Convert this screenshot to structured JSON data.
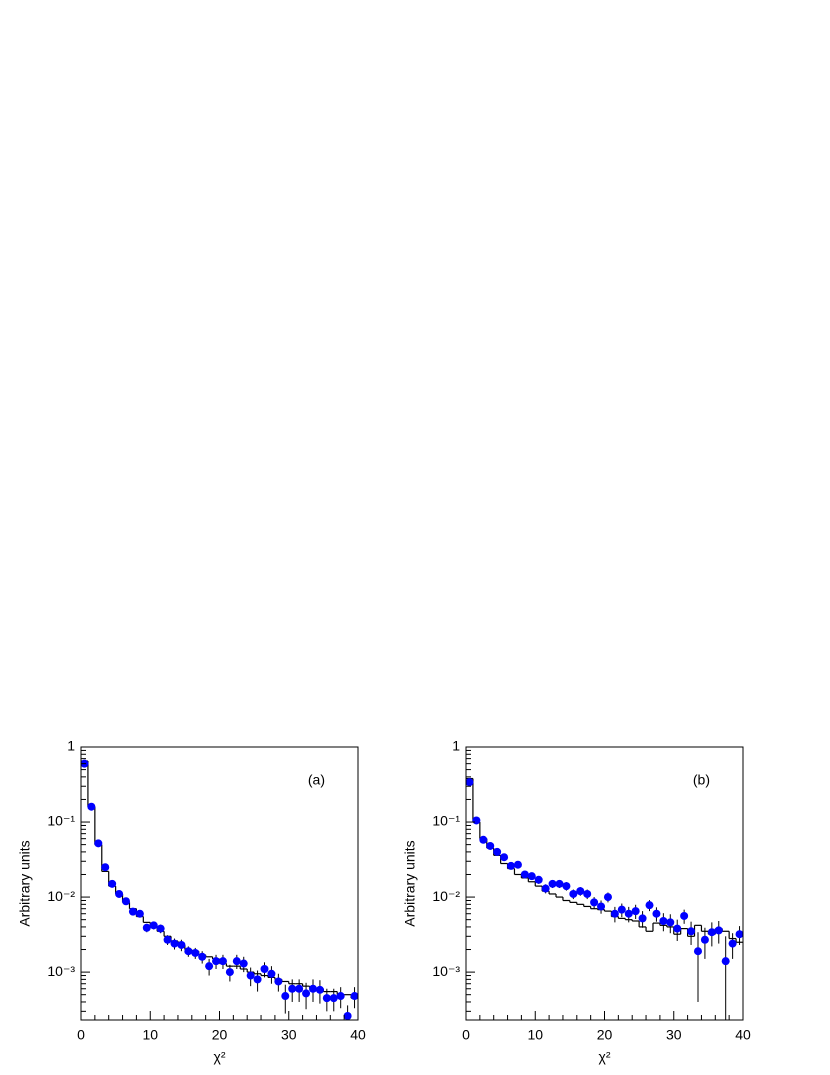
{
  "chart_data": [
    {
      "type": "histogram",
      "annotation": "(a)",
      "xlabel": "χ²",
      "ylabel": "Arbitrary units",
      "xlim": [
        0,
        40
      ],
      "xticks": [
        0,
        10,
        20,
        30,
        40
      ],
      "ylim": [
        0.00023,
        1
      ],
      "log_y": true,
      "yticks": [
        {
          "value": 0.001,
          "label": "10⁻³"
        },
        {
          "value": 0.01,
          "label": "10⁻²"
        },
        {
          "value": 0.1,
          "label": "10⁻¹"
        },
        1
      ],
      "bins": [
        0,
        1,
        2,
        3,
        4,
        5,
        6,
        7,
        8,
        9,
        10,
        11,
        12,
        13,
        14,
        15,
        16,
        17,
        18,
        19,
        20,
        21,
        22,
        23,
        24,
        25,
        26,
        27,
        28,
        29,
        30,
        31,
        32,
        33,
        34,
        35,
        36,
        37,
        38,
        39,
        40
      ],
      "values": [
        0.65,
        0.16,
        0.05,
        0.022,
        0.014,
        0.011,
        0.0085,
        0.007,
        0.0055,
        0.0046,
        0.004,
        0.0035,
        0.003,
        0.0026,
        0.0023,
        0.002,
        0.0019,
        0.0017,
        0.0016,
        0.0015,
        0.0013,
        0.0012,
        0.0012,
        0.0011,
        0.001,
        0.00095,
        0.0009,
        0.00085,
        0.0008,
        0.00075,
        0.0007,
        0.0007,
        0.00065,
        0.00062,
        0.0006,
        0.00055,
        0.00055,
        0.0005,
        0.0005,
        0.00045
      ],
      "color": "#000000",
      "points": {
        "color": "#0000ff",
        "x": [
          0.5,
          1.5,
          2.5,
          3.5,
          4.5,
          5.5,
          6.5,
          7.5,
          8.5,
          9.5,
          10.5,
          11.5,
          12.5,
          13.5,
          14.5,
          15.5,
          16.5,
          17.5,
          18.5,
          19.5,
          20.5,
          21.5,
          22.5,
          23.5,
          24.5,
          25.5,
          26.5,
          27.5,
          28.5,
          29.5,
          30.5,
          31.5,
          32.5,
          33.5,
          34.5,
          35.5,
          36.5,
          37.5,
          38.5,
          39.5
        ],
        "values": [
          0.6,
          0.16,
          0.052,
          0.025,
          0.015,
          0.011,
          0.0088,
          0.0064,
          0.006,
          0.0039,
          0.0042,
          0.0038,
          0.0027,
          0.0024,
          0.0023,
          0.0019,
          0.0018,
          0.0016,
          0.0012,
          0.0014,
          0.0014,
          0.001,
          0.0014,
          0.0013,
          0.0009,
          0.0008,
          0.0011,
          0.00095,
          0.00075,
          0.00048,
          0.0006,
          0.0006,
          0.00052,
          0.0006,
          0.00058,
          0.00045,
          0.00045,
          0.00048,
          0.00026,
          0.00048
        ],
        "errors": [
          0.02,
          0.008,
          0.003,
          0.0015,
          0.001,
          0.0008,
          0.0007,
          0.0006,
          0.0006,
          0.0005,
          0.0005,
          0.0005,
          0.0004,
          0.0004,
          0.0004,
          0.0003,
          0.0003,
          0.0003,
          0.0003,
          0.0003,
          0.0003,
          0.00025,
          0.0003,
          0.0003,
          0.00025,
          0.00025,
          0.00025,
          0.00025,
          0.0002,
          0.0002,
          0.0002,
          0.0002,
          0.0002,
          0.0002,
          0.0002,
          0.00015,
          0.00015,
          0.00015,
          0.0001,
          0.00015
        ]
      }
    },
    {
      "type": "histogram",
      "annotation": "(b)",
      "xlabel": "χ²",
      "ylabel": "Arbitrary units",
      "xlim": [
        0,
        40
      ],
      "xticks": [
        0,
        10,
        20,
        30,
        40
      ],
      "ylim": [
        0.00023,
        1
      ],
      "log_y": true,
      "yticks": [
        {
          "value": 0.001,
          "label": "10⁻³"
        },
        {
          "value": 0.01,
          "label": "10⁻²"
        },
        {
          "value": 0.1,
          "label": "10⁻¹"
        },
        1
      ],
      "bins": [
        0,
        1,
        2,
        3,
        4,
        5,
        6,
        7,
        8,
        9,
        10,
        11,
        12,
        13,
        14,
        15,
        16,
        17,
        18,
        19,
        20,
        21,
        22,
        23,
        24,
        25,
        26,
        27,
        28,
        29,
        30,
        31,
        32,
        33,
        34,
        35,
        36,
        37,
        38,
        39,
        40
      ],
      "values": [
        0.38,
        0.1,
        0.06,
        0.045,
        0.036,
        0.028,
        0.024,
        0.02,
        0.018,
        0.016,
        0.014,
        0.012,
        0.011,
        0.01,
        0.009,
        0.0085,
        0.008,
        0.0075,
        0.007,
        0.0068,
        0.0065,
        0.0055,
        0.0052,
        0.005,
        0.0048,
        0.004,
        0.0035,
        0.0045,
        0.0042,
        0.004,
        0.0032,
        0.0038,
        0.003,
        0.0042,
        0.0035,
        0.0032,
        0.0038,
        0.0035,
        0.0028,
        0.0025
      ],
      "color": "#000000",
      "points": {
        "color": "#0000ff",
        "x": [
          0.5,
          1.5,
          2.5,
          3.5,
          4.5,
          5.5,
          6.5,
          7.5,
          8.5,
          9.5,
          10.5,
          11.5,
          12.5,
          13.5,
          14.5,
          15.5,
          16.5,
          17.5,
          18.5,
          19.5,
          20.5,
          21.5,
          22.5,
          23.5,
          24.5,
          25.5,
          26.5,
          27.5,
          28.5,
          29.5,
          30.5,
          31.5,
          32.5,
          33.5,
          34.5,
          35.5,
          36.5,
          37.5,
          38.5,
          39.5
        ],
        "values": [
          0.34,
          0.105,
          0.058,
          0.048,
          0.04,
          0.034,
          0.026,
          0.027,
          0.02,
          0.019,
          0.017,
          0.013,
          0.015,
          0.015,
          0.014,
          0.011,
          0.012,
          0.011,
          0.0085,
          0.0075,
          0.01,
          0.006,
          0.0068,
          0.006,
          0.0065,
          0.0052,
          0.0078,
          0.006,
          0.0048,
          0.0046,
          0.0038,
          0.0056,
          0.0035,
          0.0019,
          0.0027,
          0.0034,
          0.0036,
          0.0014,
          0.0024,
          0.0032
        ],
        "errors": [
          0.02,
          0.006,
          0.004,
          0.003,
          0.003,
          0.0025,
          0.002,
          0.002,
          0.002,
          0.002,
          0.002,
          0.0018,
          0.0018,
          0.0018,
          0.0018,
          0.0016,
          0.0016,
          0.0016,
          0.0015,
          0.0015,
          0.0015,
          0.0014,
          0.0014,
          0.0014,
          0.0014,
          0.0013,
          0.0013,
          0.0013,
          0.0013,
          0.0013,
          0.0012,
          0.0012,
          0.0012,
          0.0015,
          0.0012,
          0.0012,
          0.0012,
          0.0016,
          0.0009,
          0.0009
        ]
      }
    }
  ]
}
